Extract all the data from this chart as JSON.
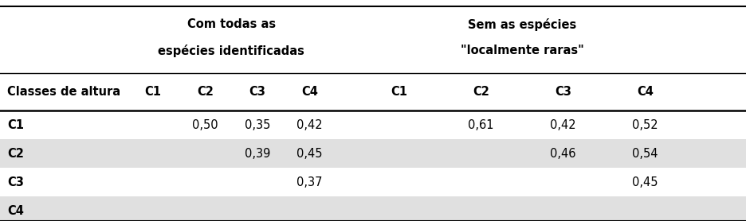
{
  "group1_header": [
    "Com todas as",
    "espécies identificadas"
  ],
  "group2_header": [
    "Sem as espécies",
    "\"localmente raras\""
  ],
  "col_headers": [
    "Classes de altura",
    "C1",
    "C2",
    "C3",
    "C4",
    "C1",
    "C2",
    "C3",
    "C4"
  ],
  "rows": [
    [
      "C1",
      "",
      "0,50",
      "0,35",
      "0,42",
      "",
      "0,61",
      "0,42",
      "0,52"
    ],
    [
      "C2",
      "",
      "",
      "0,39",
      "0,45",
      "",
      "",
      "0,46",
      "0,54"
    ],
    [
      "C3",
      "",
      "",
      "",
      "0,37",
      "",
      "",
      "",
      "0,45"
    ],
    [
      "C4",
      "",
      "",
      "",
      "",
      "",
      "",
      "",
      ""
    ]
  ],
  "row_bg_colors": [
    "#ffffff",
    "#e0e0e0",
    "#ffffff",
    "#e0e0e0"
  ],
  "bg_color": "#ffffff",
  "text_color": "#000000",
  "font_size": 10.5,
  "header_font_size": 10.5
}
